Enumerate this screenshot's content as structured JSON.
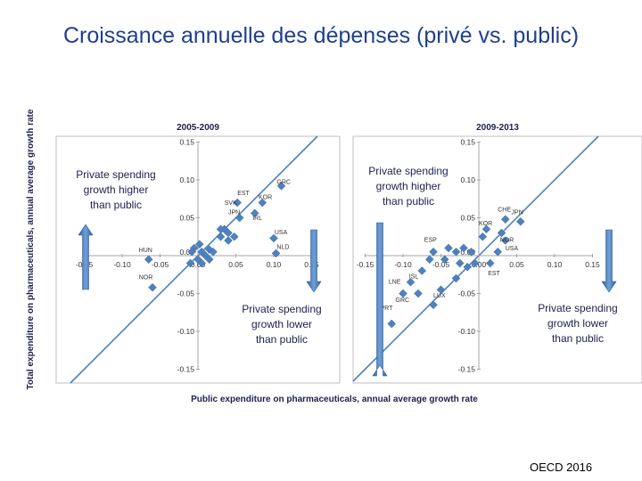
{
  "slide": {
    "title": "Croissance annuelle des dépenses (privé vs. public)",
    "footer": "OECD 2016"
  },
  "figure": {
    "y_axis_label": "Total expenditure on pharmaceuticals, annual average growth rate",
    "x_axis_label": "Public expenditure on pharmaceuticals, annual average growth rate"
  },
  "colors": {
    "marker": "#4f81bd",
    "diagonal": "#4f81bd",
    "arrow": "#4f81bd",
    "axis": "#a6a6a6",
    "panel_border": "#bfbfbf",
    "text": "#1f1f4f"
  },
  "chart_data": [
    {
      "type": "scatter",
      "title": "2005-2009",
      "xlim": [
        -0.15,
        0.15
      ],
      "ylim": [
        -0.15,
        0.15
      ],
      "x_ticks": [
        "-0.15",
        "-0.10",
        "-0.05",
        "0.00",
        "0.05",
        "0.10",
        "0.15"
      ],
      "y_ticks": [
        "0.15",
        "0.10",
        "0.05",
        "0.00",
        "-0.05",
        "-0.10",
        "-0.15"
      ],
      "annotation_upper": "Private spending growth higher than public",
      "annotation_lower": "Private spending growth lower than public",
      "diagonal": "y = x",
      "labels": [
        {
          "text": "GRC",
          "x": 0.104,
          "y": 0.095
        },
        {
          "text": "KOR",
          "x": 0.08,
          "y": 0.075
        },
        {
          "text": "EST",
          "x": 0.052,
          "y": 0.08
        },
        {
          "text": "SVK",
          "x": 0.035,
          "y": 0.067
        },
        {
          "text": "JPN",
          "x": 0.04,
          "y": 0.055
        },
        {
          "text": "IRL",
          "x": 0.072,
          "y": 0.047
        },
        {
          "text": "USA",
          "x": 0.101,
          "y": 0.028
        },
        {
          "text": "NLD",
          "x": 0.104,
          "y": 0.009
        },
        {
          "text": "HUN",
          "x": -0.078,
          "y": 0.005
        },
        {
          "text": "NOR",
          "x": -0.078,
          "y": -0.031
        }
      ],
      "points": [
        {
          "x": 0.11,
          "y": 0.092
        },
        {
          "x": 0.085,
          "y": 0.07
        },
        {
          "x": 0.052,
          "y": 0.07
        },
        {
          "x": 0.075,
          "y": 0.056
        },
        {
          "x": 0.055,
          "y": 0.05
        },
        {
          "x": 0.035,
          "y": 0.035
        },
        {
          "x": 0.04,
          "y": 0.03
        },
        {
          "x": 0.03,
          "y": 0.035
        },
        {
          "x": 0.048,
          "y": 0.025
        },
        {
          "x": 0.03,
          "y": 0.025
        },
        {
          "x": 0.04,
          "y": 0.02
        },
        {
          "x": 0.1,
          "y": 0.023
        },
        {
          "x": 0.103,
          "y": 0.003
        },
        {
          "x": 0.002,
          "y": 0.015
        },
        {
          "x": -0.005,
          "y": 0.01
        },
        {
          "x": -0.008,
          "y": 0.005
        },
        {
          "x": 0.005,
          "y": 0.005
        },
        {
          "x": 0.015,
          "y": 0.008
        },
        {
          "x": 0.02,
          "y": 0.005
        },
        {
          "x": 0.01,
          "y": 0.0
        },
        {
          "x": 0.0,
          "y": -0.005
        },
        {
          "x": -0.01,
          "y": -0.01
        },
        {
          "x": 0.005,
          "y": -0.01
        },
        {
          "x": 0.015,
          "y": -0.005
        },
        {
          "x": -0.065,
          "y": -0.005
        },
        {
          "x": -0.06,
          "y": -0.042
        }
      ]
    },
    {
      "type": "scatter",
      "title": "2009-2013",
      "xlim": [
        -0.15,
        0.15
      ],
      "ylim": [
        -0.15,
        0.15
      ],
      "x_ticks": [
        "-0.15",
        "-0.10",
        "-0.05",
        "0.00",
        "0.05",
        "0.10",
        "0.15"
      ],
      "y_ticks": [
        "0.15",
        "0.10",
        "0.05",
        "0.00",
        "-0.05",
        "-0.10",
        "-0.15"
      ],
      "annotation_upper": "Private spending growth higher than public",
      "annotation_lower": "Private spending growth lower than public",
      "diagonal": "y = x",
      "labels": [
        {
          "text": "CHE",
          "x": 0.025,
          "y": 0.058
        },
        {
          "text": "JPN",
          "x": 0.043,
          "y": 0.055
        },
        {
          "text": "KOR",
          "x": 0.0,
          "y": 0.04
        },
        {
          "text": "NOR",
          "x": 0.028,
          "y": 0.018
        },
        {
          "text": "USA",
          "x": 0.035,
          "y": 0.007
        },
        {
          "text": "EST",
          "x": 0.012,
          "y": -0.026
        },
        {
          "text": "ESP",
          "x": -0.072,
          "y": 0.018
        },
        {
          "text": "ISL",
          "x": -0.092,
          "y": -0.03
        },
        {
          "text": "LNE",
          "x": -0.119,
          "y": -0.037
        },
        {
          "text": "GRC",
          "x": -0.11,
          "y": -0.061
        },
        {
          "text": "LUX",
          "x": -0.06,
          "y": -0.055
        },
        {
          "text": "PRT",
          "x": -0.13,
          "y": -0.072
        }
      ],
      "points": [
        {
          "x": 0.035,
          "y": 0.048
        },
        {
          "x": 0.055,
          "y": 0.045
        },
        {
          "x": 0.01,
          "y": 0.035
        },
        {
          "x": 0.03,
          "y": 0.03
        },
        {
          "x": 0.005,
          "y": 0.025
        },
        {
          "x": 0.035,
          "y": 0.02
        },
        {
          "x": 0.025,
          "y": 0.005
        },
        {
          "x": 0.015,
          "y": -0.01
        },
        {
          "x": -0.02,
          "y": 0.01
        },
        {
          "x": -0.04,
          "y": 0.01
        },
        {
          "x": -0.03,
          "y": 0.005
        },
        {
          "x": -0.01,
          "y": 0.005
        },
        {
          "x": -0.045,
          "y": -0.005
        },
        {
          "x": -0.025,
          "y": -0.01
        },
        {
          "x": -0.015,
          "y": -0.015
        },
        {
          "x": -0.005,
          "y": -0.01
        },
        {
          "x": -0.06,
          "y": 0.005
        },
        {
          "x": -0.065,
          "y": -0.005
        },
        {
          "x": -0.03,
          "y": -0.03
        },
        {
          "x": -0.05,
          "y": -0.045
        },
        {
          "x": -0.075,
          "y": -0.02
        },
        {
          "x": -0.09,
          "y": -0.035
        },
        {
          "x": -0.08,
          "y": -0.05
        },
        {
          "x": -0.1,
          "y": -0.05
        },
        {
          "x": -0.06,
          "y": -0.065
        },
        {
          "x": -0.115,
          "y": -0.09
        }
      ]
    }
  ]
}
